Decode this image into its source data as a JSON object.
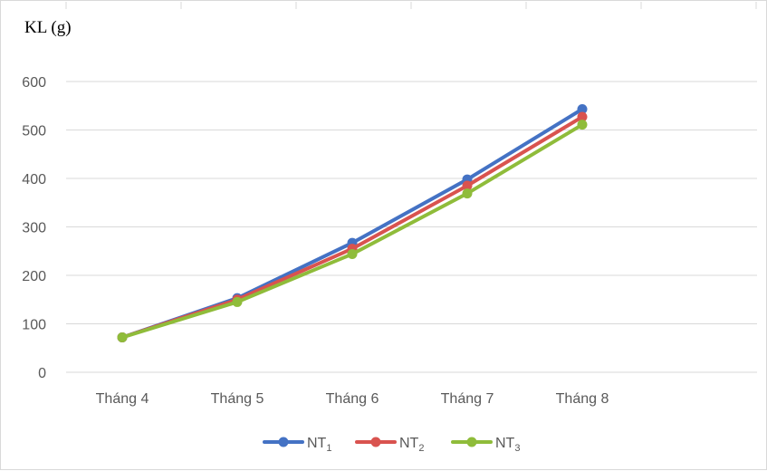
{
  "chart_data": {
    "type": "line",
    "title": "",
    "ylabel": "KL (g)",
    "xlabel": "",
    "categories": [
      "Tháng 4",
      "Tháng 5",
      "Tháng 6",
      "Tháng 7",
      "Tháng 8"
    ],
    "ylim": [
      0,
      600
    ],
    "yticks": [
      "0",
      "100",
      "200",
      "300",
      "400",
      "500",
      "600"
    ],
    "grid": true,
    "legend_position": "bottom",
    "series": [
      {
        "name": "NT",
        "name_sub": "1",
        "color": "#4472c4",
        "values": [
          72,
          153,
          267,
          398,
          543
        ]
      },
      {
        "name": "NT",
        "name_sub": "2",
        "color": "#d9534f",
        "values": [
          72,
          150,
          255,
          385,
          527
        ]
      },
      {
        "name": "NT",
        "name_sub": "3",
        "color": "#8fbc3a",
        "values": [
          72,
          145,
          244,
          369,
          511
        ]
      }
    ]
  }
}
